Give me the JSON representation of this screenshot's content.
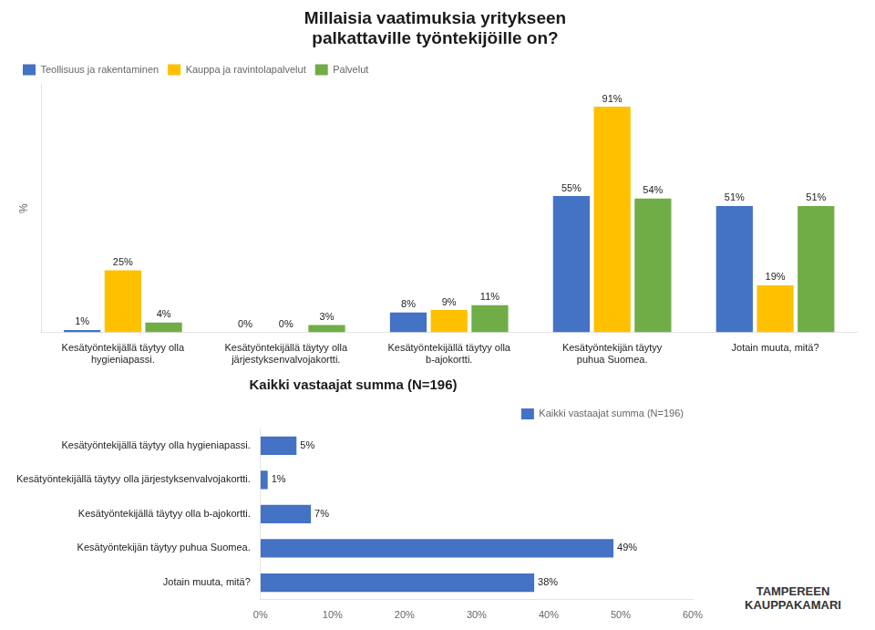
{
  "chart_data": [
    {
      "type": "bar",
      "title": "Millaisia vaatimuksia yritykseen\npalkattaville työntekijöille on?",
      "categories": [
        "Kesätyöntekijällä täytyy olla\nhygieniapassi.",
        "Kesätyöntekijällä täytyy olla\njärjestyksenvalvojakortti.",
        "Kesätyöntekijällä täytyy olla\nb-ajokortti.",
        "Kesätyöntekijän täytyy\npuhua Suomea.",
        "Jotain muuta, mitä?"
      ],
      "series": [
        {
          "name": "Teollisuus ja rakentaminen",
          "color": "#4472c4",
          "values": [
            1,
            0,
            8,
            55,
            51
          ],
          "value_labels": [
            "1%",
            "0%",
            "8%",
            "55%",
            "51%"
          ]
        },
        {
          "name": "Kauppa ja ravintolapalvelut",
          "color": "#ffc000",
          "values": [
            25,
            0,
            9,
            91,
            19
          ],
          "value_labels": [
            "25%",
            "0%",
            "9%",
            "91%",
            "19%"
          ]
        },
        {
          "name": "Palvelut",
          "color": "#70ad47",
          "values": [
            4,
            3,
            11,
            54,
            51
          ],
          "value_labels": [
            "4%",
            "3%",
            "11%",
            "54%",
            "51%"
          ]
        }
      ],
      "ylabel": "%",
      "ylim": [
        0,
        100
      ],
      "tick_labels": "x",
      "grid": false,
      "legend": "upper left",
      "data_labels": true
    },
    {
      "type": "bar",
      "orientation": "horizontal",
      "title": "Kaikki vastaajat summa (N=196)",
      "categories": [
        "Kesätyöntekijällä täytyy olla hygieniapassi.",
        "Kesätyöntekijällä täytyy olla järjestyksenvalvojakortti.",
        "Kesätyöntekijällä täytyy olla b-ajokortti.",
        "Kesätyöntekijän täytyy puhua Suomea.",
        "Jotain muuta, mitä?"
      ],
      "series": [
        {
          "name": "Kaikki vastaajat summa (N=196)",
          "color": "#4472c4",
          "values": [
            5,
            1,
            7,
            49,
            38
          ],
          "value_labels": [
            "5%",
            "1%",
            "7%",
            "49%",
            "38%"
          ]
        }
      ],
      "xlim": [
        0,
        60
      ],
      "xticks": [
        {
          "value": 0,
          "label": "0%"
        },
        {
          "value": 10,
          "label": "10%"
        },
        {
          "value": 20,
          "label": "20%"
        },
        {
          "value": 30,
          "label": "30%"
        },
        {
          "value": 40,
          "label": "40%"
        },
        {
          "value": 50,
          "label": "50%"
        },
        {
          "value": 60,
          "label": "60%"
        }
      ],
      "grid": false,
      "legend": "upper right",
      "data_labels": true,
      "annotations": [
        "TAMPEREEN\nKAUPPAKAMARI"
      ]
    }
  ]
}
